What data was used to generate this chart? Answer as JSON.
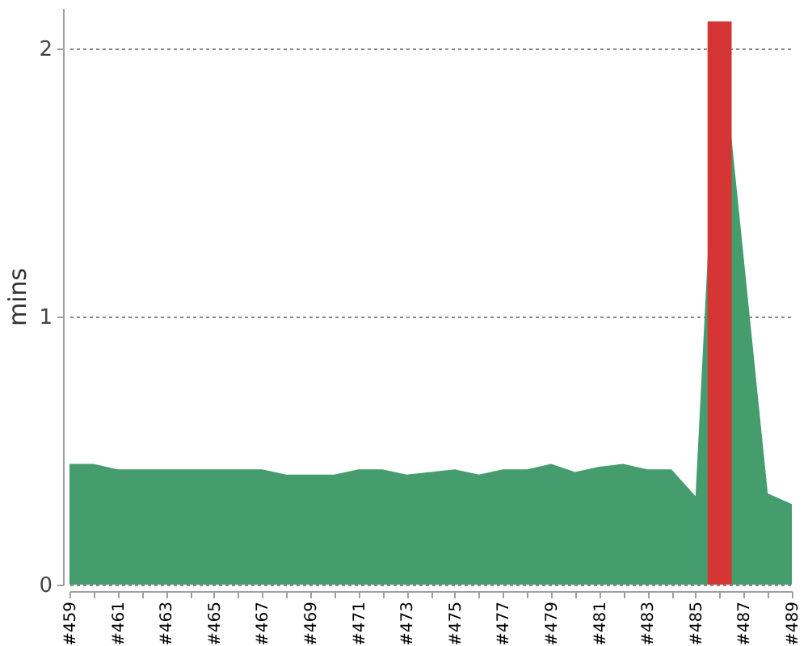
{
  "chart_data": {
    "type": "area",
    "ylabel": "mins",
    "categories": [
      "#459",
      null,
      "#461",
      null,
      "#463",
      null,
      "#465",
      null,
      "#467",
      null,
      "#469",
      null,
      "#471",
      null,
      "#473",
      null,
      "#475",
      null,
      "#477",
      null,
      "#479",
      null,
      "#481",
      null,
      "#483",
      null,
      "#485",
      null,
      "#487",
      null,
      "#489"
    ],
    "series": [
      {
        "color": "#459c6c",
        "values": [
          0.45,
          0.45,
          0.43,
          0.43,
          0.43,
          0.43,
          0.43,
          0.43,
          0.43,
          0.41,
          0.41,
          0.41,
          0.43,
          0.43,
          0.41,
          0.42,
          0.43,
          0.41,
          0.43,
          0.43,
          0.45,
          0.42,
          0.44,
          0.45,
          0.43,
          0.43,
          0.33,
          2.1,
          null,
          0.34,
          0.3
        ]
      },
      {
        "type": "bar",
        "color": "#d63536",
        "values": [
          null,
          null,
          null,
          null,
          null,
          null,
          null,
          null,
          null,
          null,
          null,
          null,
          null,
          null,
          null,
          null,
          null,
          null,
          null,
          null,
          null,
          null,
          null,
          null,
          null,
          null,
          null,
          2.1,
          null,
          null,
          null
        ]
      }
    ],
    "ylim": [
      0,
      2.15
    ],
    "yticks": [
      0,
      1,
      2
    ],
    "grid": "y"
  }
}
